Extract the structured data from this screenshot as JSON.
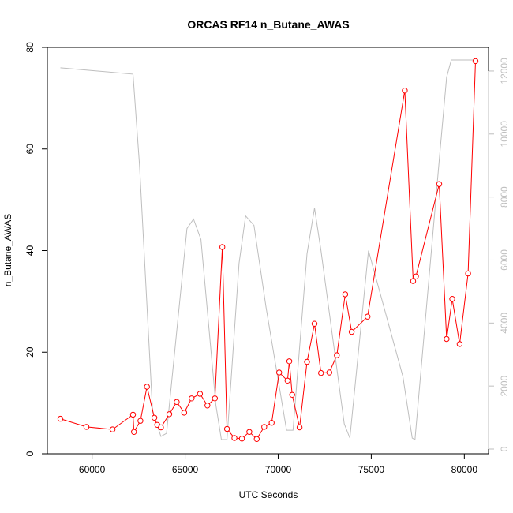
{
  "chart_data": {
    "type": "line",
    "title": "ORCAS RF14 n_Butane_AWAS",
    "xlabel": "UTC Seconds",
    "ylabel": "n_Butane_AWAS",
    "xlim": [
      57600,
      81300
    ],
    "ylim": [
      0,
      80
    ],
    "y2lim": [
      -150,
      12750
    ],
    "x_ticks": [
      60000,
      65000,
      70000,
      75000,
      80000
    ],
    "y_ticks": [
      0,
      20,
      40,
      60,
      80
    ],
    "y2_ticks": [
      0,
      2000,
      4000,
      6000,
      8000,
      10000,
      12000
    ],
    "grid": false,
    "legend": "none",
    "colors": {
      "primary": "#ff0000",
      "secondary": "#bebebe"
    },
    "series": [
      {
        "axis": "left",
        "style": "line+points",
        "points": [
          [
            58300,
            6.9
          ],
          [
            59700,
            5.3
          ],
          [
            61100,
            4.8
          ],
          [
            62200,
            7.7
          ],
          [
            62250,
            4.3
          ],
          [
            62600,
            6.5
          ],
          [
            62950,
            13.2
          ],
          [
            63350,
            7.1
          ],
          [
            63500,
            5.7
          ],
          [
            63700,
            5.2
          ],
          [
            64150,
            7.8
          ],
          [
            64550,
            10.2
          ],
          [
            64950,
            8.1
          ],
          [
            65350,
            10.9
          ],
          [
            65800,
            11.8
          ],
          [
            66200,
            9.5
          ],
          [
            66600,
            10.9
          ],
          [
            67000,
            40.7
          ],
          [
            67250,
            4.9
          ],
          [
            67650,
            3.1
          ],
          [
            68050,
            3.0
          ],
          [
            68450,
            4.3
          ],
          [
            68850,
            2.9
          ],
          [
            69250,
            5.3
          ],
          [
            69650,
            6.1
          ],
          [
            70050,
            16.0
          ],
          [
            70500,
            14.4
          ],
          [
            70600,
            18.2
          ],
          [
            70750,
            11.6
          ],
          [
            71150,
            5.2
          ],
          [
            71550,
            18.1
          ],
          [
            71950,
            25.6
          ],
          [
            72300,
            15.9
          ],
          [
            72750,
            16.0
          ],
          [
            73150,
            19.4
          ],
          [
            73600,
            31.4
          ],
          [
            73950,
            24.0
          ],
          [
            74800,
            27.0
          ],
          [
            76800,
            71.5
          ],
          [
            77250,
            34.0
          ],
          [
            77400,
            34.9
          ],
          [
            78650,
            53.1
          ],
          [
            79050,
            22.6
          ],
          [
            79350,
            30.5
          ],
          [
            79750,
            21.6
          ],
          [
            80200,
            35.5
          ],
          [
            80600,
            77.3
          ]
        ]
      },
      {
        "axis": "right",
        "style": "line",
        "points": [
          [
            58300,
            12100
          ],
          [
            62200,
            11900
          ],
          [
            62550,
            9000
          ],
          [
            63250,
            1200
          ],
          [
            63700,
            400
          ],
          [
            64000,
            500
          ],
          [
            65100,
            7000
          ],
          [
            65450,
            7300
          ],
          [
            65850,
            6650
          ],
          [
            66650,
            1400
          ],
          [
            66950,
            300
          ],
          [
            67250,
            300
          ],
          [
            67900,
            5900
          ],
          [
            68250,
            7400
          ],
          [
            68700,
            7100
          ],
          [
            69350,
            4500
          ],
          [
            70450,
            600
          ],
          [
            70800,
            600
          ],
          [
            71550,
            6200
          ],
          [
            71950,
            7650
          ],
          [
            72300,
            6300
          ],
          [
            73550,
            800
          ],
          [
            73850,
            350
          ],
          [
            74850,
            6300
          ],
          [
            76700,
            2300
          ],
          [
            77200,
            350
          ],
          [
            77350,
            300
          ],
          [
            78700,
            9500
          ],
          [
            79050,
            11800
          ],
          [
            79300,
            12350
          ],
          [
            80600,
            12350
          ]
        ]
      }
    ]
  }
}
